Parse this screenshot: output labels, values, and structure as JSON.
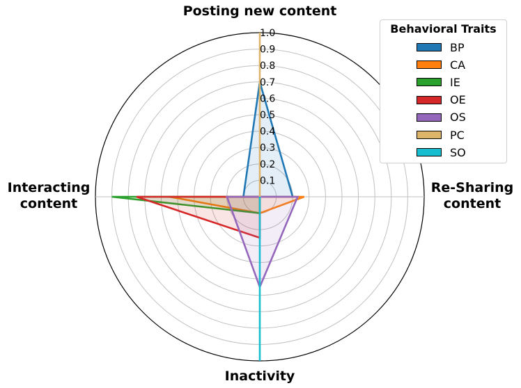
{
  "chart_data": {
    "type": "radar",
    "axes": [
      "Posting new content",
      "Re-Sharing content",
      "Inactivity",
      "Interacting content"
    ],
    "axis_labels": [
      "Posting new content",
      "Re-Sharing\ncontent",
      "Inactivity",
      "Interacting\ncontent"
    ],
    "rmax": 1.0,
    "rticks": [
      "0.1",
      "0.2",
      "0.3",
      "0.4",
      "0.5",
      "0.6",
      "0.7",
      "0.8",
      "0.9",
      "1.0"
    ],
    "legend": {
      "title": "Behavioral Traits",
      "position": "top-right"
    },
    "series": [
      {
        "name": "BP",
        "color": "#1f77b4",
        "values": [
          0.7,
          0.2,
          0.0,
          0.1
        ]
      },
      {
        "name": "CA",
        "color": "#ff7f0e",
        "values": [
          0.0,
          0.27,
          0.1,
          0.55
        ]
      },
      {
        "name": "IE",
        "color": "#2ca02c",
        "values": [
          0.0,
          0.0,
          0.1,
          0.9
        ]
      },
      {
        "name": "OE",
        "color": "#d62728",
        "values": [
          0.0,
          0.0,
          0.25,
          0.75
        ]
      },
      {
        "name": "OS",
        "color": "#9467bd",
        "values": [
          0.0,
          0.23,
          0.55,
          0.2
        ]
      },
      {
        "name": "PC",
        "color": "#dcb56a",
        "values": [
          1.0,
          0.0,
          0.0,
          0.0
        ]
      },
      {
        "name": "SO",
        "color": "#17becf",
        "values": [
          0.0,
          0.0,
          1.0,
          0.0
        ]
      }
    ]
  }
}
